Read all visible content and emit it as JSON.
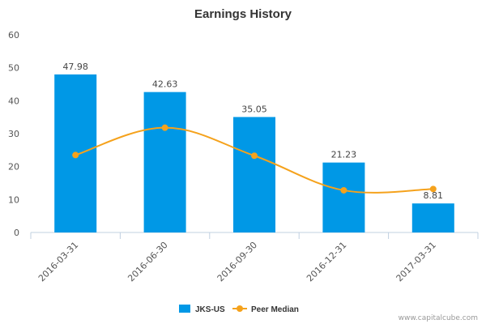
{
  "chart_data": {
    "type": "bar",
    "title": "Earnings History",
    "categories": [
      "2016-03-31",
      "2016-06-30",
      "2016-09-30",
      "2016-12-31",
      "2017-03-31"
    ],
    "series": [
      {
        "name": "JKS-US",
        "kind": "bar",
        "color": "#0098e6",
        "values": [
          47.98,
          42.63,
          35.05,
          21.23,
          8.81
        ],
        "data_labels": [
          "47.98",
          "42.63",
          "35.05",
          "21.23",
          "8.81"
        ]
      },
      {
        "name": "Peer Median",
        "kind": "line",
        "color": "#f5a21c",
        "values": [
          23.5,
          31.8,
          23.3,
          12.8,
          13.2
        ]
      }
    ],
    "yticks": [
      "0",
      "10",
      "20",
      "30",
      "40",
      "50",
      "60"
    ],
    "ylim": [
      0,
      60
    ],
    "grid": false,
    "legend_position": "bottom"
  },
  "credit": "www.capitalcube.com"
}
